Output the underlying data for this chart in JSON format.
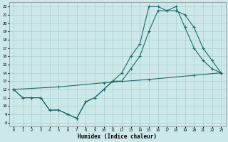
{
  "xlabel": "Humidex (Indice chaleur)",
  "bg_color": "#cce8e8",
  "line_color": "#1a6b6b",
  "grid_color": "#aacfcf",
  "xlim": [
    -0.5,
    23.5
  ],
  "ylim": [
    7.5,
    22.5
  ],
  "xticks": [
    0,
    1,
    2,
    3,
    4,
    5,
    6,
    7,
    8,
    9,
    10,
    11,
    12,
    13,
    14,
    15,
    16,
    17,
    18,
    19,
    20,
    21,
    22,
    23
  ],
  "yticks": [
    8,
    9,
    10,
    11,
    12,
    13,
    14,
    15,
    16,
    17,
    18,
    19,
    20,
    21,
    22
  ],
  "line1_x": [
    0,
    1,
    2,
    3,
    4,
    5,
    6,
    7,
    8,
    9,
    10,
    11,
    12,
    13,
    14,
    15,
    16,
    17,
    18,
    19,
    20,
    21,
    22,
    23
  ],
  "line1_y": [
    12,
    11,
    11,
    11,
    9.5,
    9.5,
    9,
    8.5,
    10.5,
    11,
    12,
    13,
    13,
    14.5,
    16,
    19,
    21.5,
    21.5,
    21.5,
    21,
    19.5,
    17,
    15.5,
    14
  ],
  "line2_x": [
    0,
    1,
    2,
    3,
    4,
    5,
    6,
    7,
    8,
    9,
    10,
    11,
    12,
    13,
    14,
    15,
    16,
    17,
    18,
    19,
    20,
    21,
    22,
    23
  ],
  "line2_y": [
    12,
    11,
    11,
    11,
    9.5,
    9.5,
    9,
    8.5,
    10.5,
    11,
    12,
    13,
    14,
    16,
    17.5,
    22,
    22,
    21.5,
    22,
    19.5,
    17,
    15.5,
    14.5,
    14
  ],
  "line3_x": [
    0,
    5,
    10,
    15,
    20,
    23
  ],
  "line3_y": [
    12,
    12.3,
    12.8,
    13.2,
    13.7,
    14
  ]
}
